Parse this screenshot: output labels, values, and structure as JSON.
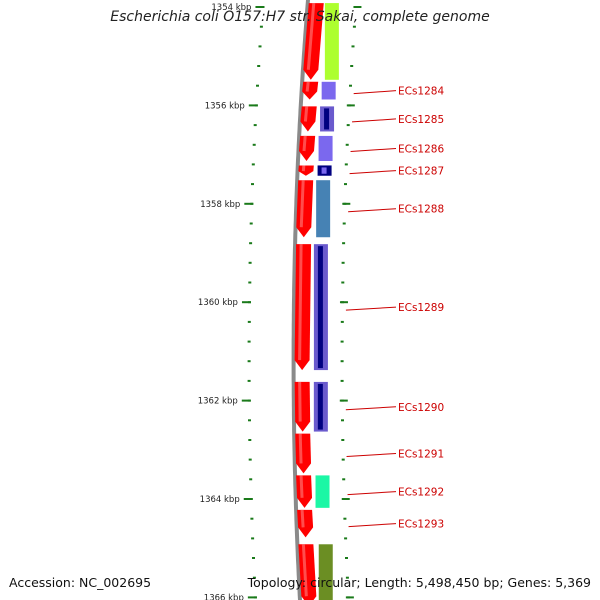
{
  "title": "Escherichia coli O157:H7 str. Sakai, complete genome",
  "footer": {
    "accession": "Accession: NC_002695",
    "stats": "Topology: circular; Length: 5,498,450 bp; Genes: 5,369"
  },
  "axis_unit": "kbp",
  "ticks": [
    {
      "label": "1354 kbp",
      "kbp": 1354
    },
    {
      "label": "1356 kbp",
      "kbp": 1356
    },
    {
      "label": "1358 kbp",
      "kbp": 1358
    },
    {
      "label": "1360 kbp",
      "kbp": 1360
    },
    {
      "label": "1362 kbp",
      "kbp": 1362
    },
    {
      "label": "1364 kbp",
      "kbp": 1364
    },
    {
      "label": "1366 kbp",
      "kbp": 1366
    }
  ],
  "colors": {
    "backbone": "#8a8a8a",
    "cds": "#ff0000",
    "gene_label": "#cc0000",
    "tick": "#1a7a1a",
    "tick_label": "#222222"
  },
  "cds_features": [
    {
      "start": 1353.9,
      "end": 1355.5
    },
    {
      "start": 1355.5,
      "end": 1355.9
    },
    {
      "start": 1356.0,
      "end": 1356.55
    },
    {
      "start": 1356.6,
      "end": 1357.15
    },
    {
      "start": 1357.2,
      "end": 1357.45
    },
    {
      "start": 1357.5,
      "end": 1358.7
    },
    {
      "start": 1358.8,
      "end": 1361.4
    },
    {
      "start": 1361.6,
      "end": 1362.65
    },
    {
      "start": 1362.65,
      "end": 1363.5
    },
    {
      "start": 1363.5,
      "end": 1364.2
    },
    {
      "start": 1364.2,
      "end": 1364.8
    },
    {
      "start": 1364.9,
      "end": 1366.2
    }
  ],
  "genes": [
    {
      "start": 1353.9,
      "end": 1355.5,
      "color": "#adff2f"
    },
    {
      "label": "ECs1284",
      "start": 1355.5,
      "end": 1355.9,
      "color": "#7b68ee"
    },
    {
      "label": "ECs1285",
      "start": 1356.0,
      "end": 1356.55,
      "color": "#6a5acd",
      "inner": "#000080"
    },
    {
      "label": "ECs1286",
      "start": 1356.6,
      "end": 1357.15,
      "color": "#7b68ee"
    },
    {
      "label": "ECs1287",
      "start": 1357.2,
      "end": 1357.45,
      "color": "#000080",
      "inner": "#7b68ee"
    },
    {
      "label": "ECs1288",
      "start": 1357.5,
      "end": 1358.7,
      "color": "#4682b4"
    },
    {
      "label": "ECs1289",
      "start": 1358.8,
      "end": 1361.4,
      "color": "#6a5acd",
      "inner": "#000080"
    },
    {
      "label": "ECs1290",
      "start": 1361.6,
      "end": 1362.65,
      "color": "#6a5acd",
      "inner": "#000080"
    },
    {
      "label": "ECs1291",
      "start": 1362.65,
      "end": 1363.5,
      "color": null
    },
    {
      "label": "ECs1292",
      "start": 1363.5,
      "end": 1364.2,
      "color": "#1bf7a5"
    },
    {
      "label": "ECs1293",
      "start": 1364.2,
      "end": 1364.8,
      "color": null
    },
    {
      "start": 1364.9,
      "end": 1366.2,
      "color": "#6b8e23"
    }
  ]
}
